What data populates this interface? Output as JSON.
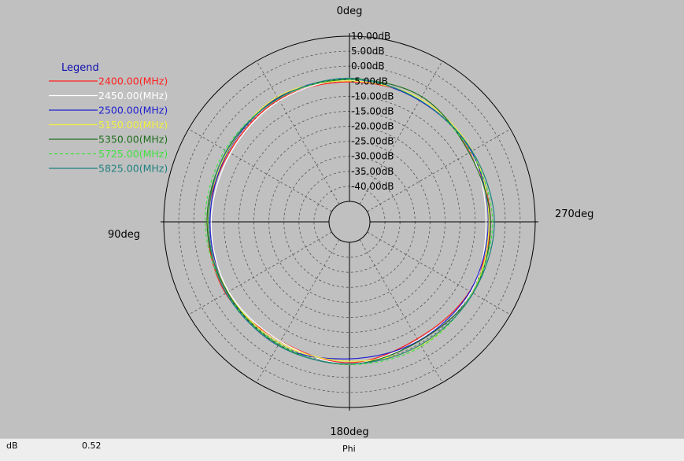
{
  "chart_data": {
    "type": "polar-line",
    "angle_labels": {
      "top": "0deg",
      "left": "90deg",
      "bottom": "180deg",
      "right": "270deg"
    },
    "radial_tick_labels": [
      "10.00dB",
      "5.00dB",
      "0.00dB",
      "-5.00dB",
      "-10.00dB",
      "-15.00dB",
      "-20.00dB",
      "-25.00dB",
      "-30.00dB",
      "-35.00dB",
      "-40.00dB"
    ],
    "radial_range_db": [
      -45,
      10
    ],
    "grid": true,
    "legend_title": "Legend",
    "legend_position": "top-left",
    "series": [
      {
        "name": "2400.00(MHz)",
        "color": "#ff2020",
        "dash": "solid",
        "theta_deg": [
          0,
          30,
          60,
          90,
          120,
          150,
          180,
          210,
          240,
          270,
          300,
          330
        ],
        "r_db": [
          -5.2,
          -4.8,
          -5.6,
          -4.6,
          -4.2,
          -6.0,
          -4.9,
          -6.8,
          -5.6,
          -4.9,
          -5.4,
          -4.7
        ]
      },
      {
        "name": "2450.00(MHz)",
        "color": "#ffffff",
        "dash": "solid",
        "theta_deg": [
          0,
          30,
          60,
          90,
          120,
          150,
          180,
          210,
          240,
          270,
          300,
          330
        ],
        "r_db": [
          -4.6,
          -5.2,
          -6.1,
          -5.8,
          -5.4,
          -5.9,
          -4.6,
          -6.3,
          -5.1,
          -6.4,
          -5.2,
          -4.8
        ]
      },
      {
        "name": "2500.00(MHz)",
        "color": "#2020d0",
        "dash": "solid",
        "theta_deg": [
          0,
          30,
          60,
          90,
          120,
          150,
          180,
          210,
          240,
          270,
          300,
          330
        ],
        "r_db": [
          -4.3,
          -4.1,
          -5.1,
          -5.4,
          -4.8,
          -4.3,
          -6.2,
          -6.0,
          -5.5,
          -5.6,
          -5.0,
          -5.2
        ]
      },
      {
        "name": "5150.00(MHz)",
        "color": "#f0f040",
        "dash": "solid",
        "theta_deg": [
          0,
          30,
          60,
          90,
          120,
          150,
          180,
          210,
          240,
          270,
          300,
          330
        ],
        "r_db": [
          -4.9,
          -3.8,
          -4.9,
          -4.7,
          -5.0,
          -5.3,
          -5.4,
          -4.3,
          -4.5,
          -5.4,
          -4.6,
          -4.5
        ]
      },
      {
        "name": "5350.00(MHz)",
        "color": "#207020",
        "dash": "solid",
        "theta_deg": [
          0,
          30,
          60,
          90,
          120,
          150,
          180,
          210,
          240,
          270,
          300,
          330
        ],
        "r_db": [
          -4.4,
          -4.3,
          -4.6,
          -4.4,
          -4.9,
          -4.6,
          -4.4,
          -5.8,
          -4.4,
          -4.9,
          -5.8,
          -3.7
        ]
      },
      {
        "name": "5725.00(MHz)",
        "color": "#40e040",
        "dash": "dashed",
        "theta_deg": [
          0,
          30,
          60,
          90,
          120,
          150,
          180,
          210,
          240,
          270,
          300,
          330
        ],
        "r_db": [
          -4.2,
          -4.5,
          -4.0,
          -3.8,
          -4.5,
          -4.7,
          -4.3,
          -3.9,
          -4.6,
          -4.2,
          -5.2,
          -5.0
        ]
      },
      {
        "name": "5825.00(MHz)",
        "color": "#208080",
        "dash": "solid",
        "theta_deg": [
          0,
          30,
          60,
          90,
          120,
          150,
          180,
          210,
          240,
          270,
          300,
          330
        ],
        "r_db": [
          -4.0,
          -4.4,
          -4.5,
          -4.9,
          -4.4,
          -4.3,
          -4.5,
          -4.5,
          -4.3,
          -3.6,
          -4.7,
          -5.0
        ]
      }
    ]
  },
  "status_bar": {
    "unit": "dB",
    "value": "0.52",
    "axis": "Phi"
  }
}
